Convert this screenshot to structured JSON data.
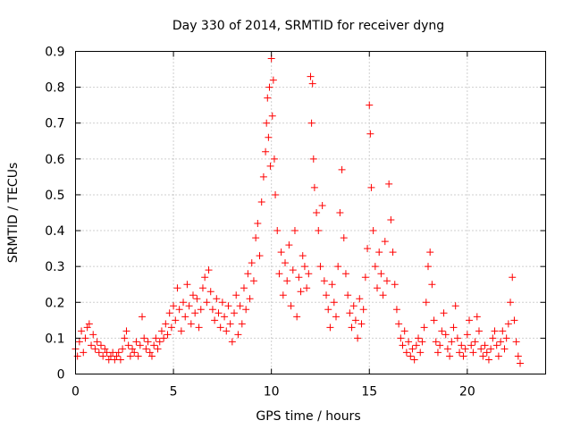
{
  "chart_data": {
    "type": "scatter",
    "title": "Day 330 of 2014, SRMTID for receiver dyng",
    "xlabel": "GPS time / hours",
    "ylabel": "SRMTID / TECUs",
    "xlim": [
      0,
      24
    ],
    "ylim": [
      0,
      0.9
    ],
    "xticks": [
      0,
      5,
      10,
      15,
      20
    ],
    "xtick_labels": [
      "0",
      "5",
      "10",
      "15",
      "20"
    ],
    "yticks": [
      0,
      0.1,
      0.2,
      0.3,
      0.4,
      0.5,
      0.6,
      0.7,
      0.8,
      0.9
    ],
    "ytick_labels": [
      "0",
      "0.1",
      "0.2",
      "0.3",
      "0.4",
      "0.5",
      "0.6",
      "0.7",
      "0.8",
      "0.9"
    ],
    "grid": true,
    "marker": "plus",
    "series": [
      {
        "name": "SRMTID",
        "color": "#ff0000",
        "points": [
          [
            0.0,
            0.07
          ],
          [
            0.1,
            0.05
          ],
          [
            0.2,
            0.09
          ],
          [
            0.3,
            0.12
          ],
          [
            0.4,
            0.06
          ],
          [
            0.5,
            0.1
          ],
          [
            0.6,
            0.13
          ],
          [
            0.7,
            0.14
          ],
          [
            0.8,
            0.08
          ],
          [
            0.9,
            0.11
          ],
          [
            1.0,
            0.07
          ],
          [
            1.1,
            0.09
          ],
          [
            1.2,
            0.06
          ],
          [
            1.3,
            0.08
          ],
          [
            1.4,
            0.05
          ],
          [
            1.5,
            0.07
          ],
          [
            1.6,
            0.06
          ],
          [
            1.7,
            0.04
          ],
          [
            1.8,
            0.05
          ],
          [
            1.9,
            0.06
          ],
          [
            2.0,
            0.04
          ],
          [
            2.1,
            0.05
          ],
          [
            2.2,
            0.06
          ],
          [
            2.3,
            0.04
          ],
          [
            2.4,
            0.07
          ],
          [
            2.5,
            0.1
          ],
          [
            2.6,
            0.12
          ],
          [
            2.7,
            0.08
          ],
          [
            2.8,
            0.05
          ],
          [
            2.9,
            0.07
          ],
          [
            3.0,
            0.06
          ],
          [
            3.1,
            0.09
          ],
          [
            3.2,
            0.05
          ],
          [
            3.3,
            0.08
          ],
          [
            3.4,
            0.16
          ],
          [
            3.5,
            0.1
          ],
          [
            3.6,
            0.07
          ],
          [
            3.7,
            0.09
          ],
          [
            3.8,
            0.06
          ],
          [
            3.9,
            0.05
          ],
          [
            4.0,
            0.08
          ],
          [
            4.1,
            0.1
          ],
          [
            4.2,
            0.07
          ],
          [
            4.3,
            0.09
          ],
          [
            4.4,
            0.12
          ],
          [
            4.5,
            0.1
          ],
          [
            4.6,
            0.14
          ],
          [
            4.7,
            0.11
          ],
          [
            4.8,
            0.17
          ],
          [
            4.9,
            0.13
          ],
          [
            5.0,
            0.19
          ],
          [
            5.1,
            0.15
          ],
          [
            5.2,
            0.24
          ],
          [
            5.3,
            0.18
          ],
          [
            5.4,
            0.12
          ],
          [
            5.5,
            0.2
          ],
          [
            5.6,
            0.16
          ],
          [
            5.7,
            0.25
          ],
          [
            5.8,
            0.19
          ],
          [
            5.9,
            0.14
          ],
          [
            6.0,
            0.22
          ],
          [
            6.1,
            0.17
          ],
          [
            6.2,
            0.21
          ],
          [
            6.3,
            0.13
          ],
          [
            6.4,
            0.18
          ],
          [
            6.5,
            0.24
          ],
          [
            6.6,
            0.27
          ],
          [
            6.7,
            0.2
          ],
          [
            6.8,
            0.29
          ],
          [
            6.9,
            0.23
          ],
          [
            7.0,
            0.18
          ],
          [
            7.1,
            0.15
          ],
          [
            7.2,
            0.21
          ],
          [
            7.3,
            0.17
          ],
          [
            7.4,
            0.13
          ],
          [
            7.5,
            0.2
          ],
          [
            7.6,
            0.16
          ],
          [
            7.7,
            0.12
          ],
          [
            7.8,
            0.19
          ],
          [
            7.9,
            0.14
          ],
          [
            8.0,
            0.09
          ],
          [
            8.1,
            0.17
          ],
          [
            8.2,
            0.22
          ],
          [
            8.3,
            0.11
          ],
          [
            8.4,
            0.19
          ],
          [
            8.5,
            0.14
          ],
          [
            8.6,
            0.24
          ],
          [
            8.7,
            0.18
          ],
          [
            8.8,
            0.28
          ],
          [
            8.9,
            0.21
          ],
          [
            9.0,
            0.31
          ],
          [
            9.1,
            0.26
          ],
          [
            9.2,
            0.38
          ],
          [
            9.3,
            0.42
          ],
          [
            9.4,
            0.33
          ],
          [
            9.5,
            0.48
          ],
          [
            9.6,
            0.55
          ],
          [
            9.7,
            0.62
          ],
          [
            9.75,
            0.7
          ],
          [
            9.8,
            0.77
          ],
          [
            9.85,
            0.66
          ],
          [
            9.9,
            0.8
          ],
          [
            9.95,
            0.58
          ],
          [
            10.0,
            0.88
          ],
          [
            10.05,
            0.72
          ],
          [
            10.1,
            0.82
          ],
          [
            10.15,
            0.6
          ],
          [
            10.2,
            0.5
          ],
          [
            10.3,
            0.4
          ],
          [
            10.4,
            0.28
          ],
          [
            10.5,
            0.34
          ],
          [
            10.6,
            0.22
          ],
          [
            10.7,
            0.31
          ],
          [
            10.8,
            0.26
          ],
          [
            10.9,
            0.36
          ],
          [
            11.0,
            0.19
          ],
          [
            11.1,
            0.29
          ],
          [
            11.2,
            0.4
          ],
          [
            11.3,
            0.16
          ],
          [
            11.4,
            0.27
          ],
          [
            11.5,
            0.23
          ],
          [
            11.6,
            0.33
          ],
          [
            11.7,
            0.3
          ],
          [
            11.8,
            0.24
          ],
          [
            11.9,
            0.28
          ],
          [
            12.0,
            0.83
          ],
          [
            12.05,
            0.7
          ],
          [
            12.1,
            0.81
          ],
          [
            12.15,
            0.6
          ],
          [
            12.2,
            0.52
          ],
          [
            12.3,
            0.45
          ],
          [
            12.4,
            0.4
          ],
          [
            12.5,
            0.3
          ],
          [
            12.6,
            0.47
          ],
          [
            12.7,
            0.26
          ],
          [
            12.8,
            0.22
          ],
          [
            12.9,
            0.18
          ],
          [
            13.0,
            0.13
          ],
          [
            13.1,
            0.25
          ],
          [
            13.2,
            0.2
          ],
          [
            13.3,
            0.16
          ],
          [
            13.4,
            0.3
          ],
          [
            13.5,
            0.45
          ],
          [
            13.6,
            0.57
          ],
          [
            13.7,
            0.38
          ],
          [
            13.8,
            0.28
          ],
          [
            13.9,
            0.22
          ],
          [
            14.0,
            0.17
          ],
          [
            14.1,
            0.13
          ],
          [
            14.2,
            0.19
          ],
          [
            14.3,
            0.15
          ],
          [
            14.4,
            0.1
          ],
          [
            14.5,
            0.21
          ],
          [
            14.6,
            0.14
          ],
          [
            14.7,
            0.18
          ],
          [
            14.8,
            0.27
          ],
          [
            14.9,
            0.35
          ],
          [
            15.0,
            0.75
          ],
          [
            15.05,
            0.67
          ],
          [
            15.1,
            0.52
          ],
          [
            15.2,
            0.4
          ],
          [
            15.3,
            0.3
          ],
          [
            15.4,
            0.24
          ],
          [
            15.5,
            0.34
          ],
          [
            15.6,
            0.28
          ],
          [
            15.7,
            0.22
          ],
          [
            15.8,
            0.37
          ],
          [
            15.9,
            0.26
          ],
          [
            16.0,
            0.53
          ],
          [
            16.1,
            0.43
          ],
          [
            16.2,
            0.34
          ],
          [
            16.3,
            0.25
          ],
          [
            16.4,
            0.18
          ],
          [
            16.5,
            0.14
          ],
          [
            16.6,
            0.1
          ],
          [
            16.7,
            0.08
          ],
          [
            16.8,
            0.12
          ],
          [
            16.9,
            0.06
          ],
          [
            17.0,
            0.09
          ],
          [
            17.1,
            0.05
          ],
          [
            17.2,
            0.07
          ],
          [
            17.3,
            0.04
          ],
          [
            17.4,
            0.08
          ],
          [
            17.5,
            0.1
          ],
          [
            17.6,
            0.06
          ],
          [
            17.7,
            0.09
          ],
          [
            17.8,
            0.13
          ],
          [
            17.9,
            0.2
          ],
          [
            18.0,
            0.3
          ],
          [
            18.1,
            0.34
          ],
          [
            18.2,
            0.25
          ],
          [
            18.3,
            0.15
          ],
          [
            18.4,
            0.09
          ],
          [
            18.5,
            0.06
          ],
          [
            18.6,
            0.08
          ],
          [
            18.7,
            0.12
          ],
          [
            18.8,
            0.17
          ],
          [
            18.9,
            0.11
          ],
          [
            19.0,
            0.07
          ],
          [
            19.1,
            0.05
          ],
          [
            19.2,
            0.09
          ],
          [
            19.3,
            0.13
          ],
          [
            19.4,
            0.19
          ],
          [
            19.5,
            0.1
          ],
          [
            19.6,
            0.06
          ],
          [
            19.7,
            0.08
          ],
          [
            19.8,
            0.05
          ],
          [
            19.9,
            0.07
          ],
          [
            20.0,
            0.11
          ],
          [
            20.1,
            0.15
          ],
          [
            20.2,
            0.08
          ],
          [
            20.3,
            0.06
          ],
          [
            20.4,
            0.09
          ],
          [
            20.5,
            0.16
          ],
          [
            20.6,
            0.12
          ],
          [
            20.7,
            0.07
          ],
          [
            20.8,
            0.05
          ],
          [
            20.9,
            0.08
          ],
          [
            21.0,
            0.06
          ],
          [
            21.1,
            0.04
          ],
          [
            21.2,
            0.07
          ],
          [
            21.3,
            0.1
          ],
          [
            21.4,
            0.12
          ],
          [
            21.5,
            0.08
          ],
          [
            21.6,
            0.05
          ],
          [
            21.7,
            0.09
          ],
          [
            21.8,
            0.12
          ],
          [
            21.9,
            0.07
          ],
          [
            22.0,
            0.1
          ],
          [
            22.1,
            0.14
          ],
          [
            22.2,
            0.2
          ],
          [
            22.3,
            0.27
          ],
          [
            22.4,
            0.15
          ],
          [
            22.5,
            0.09
          ],
          [
            22.6,
            0.05
          ],
          [
            22.7,
            0.03
          ]
        ]
      }
    ]
  }
}
